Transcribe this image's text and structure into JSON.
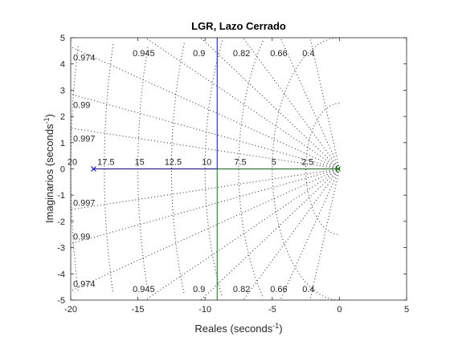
{
  "chart_data": {
    "type": "root-locus",
    "title": "LGR, Lazo Cerrado",
    "xlabel": "Reales (seconds",
    "ylabel": "Imaginarios (seconds",
    "unit_exponent": "-1",
    "unit_close": ")",
    "xlim": [
      -20,
      5
    ],
    "ylim": [
      -5,
      5
    ],
    "xticks": [
      -20,
      -15,
      -10,
      -5,
      0,
      5
    ],
    "yticks": [
      -5,
      -4,
      -3,
      -2,
      -1,
      0,
      1,
      2,
      3,
      4,
      5
    ],
    "damping_ratios": [
      "0.4",
      "0.66",
      "0.82",
      "0.9",
      "0.945",
      "0.974",
      "0.99",
      "0.997"
    ],
    "natural_frequencies": [
      "2.5",
      "5",
      "7.5",
      "10",
      "12.5",
      "15",
      "17.5",
      "20"
    ],
    "series": [
      {
        "color": "#0000ff",
        "segments": [
          {
            "x": [
              -18.3,
              -9.1
            ],
            "y": [
              0,
              0
            ]
          },
          {
            "x": [
              -9.1,
              -9.1
            ],
            "y": [
              0,
              5
            ]
          }
        ]
      },
      {
        "color": "#008000",
        "segments": [
          {
            "x": [
              -0.1,
              -9.1
            ],
            "y": [
              0,
              0
            ]
          },
          {
            "x": [
              -9.1,
              -9.1
            ],
            "y": [
              0,
              -5
            ]
          }
        ]
      }
    ],
    "poles": [
      {
        "x": -18.3,
        "y": 0,
        "color": "#0000ff"
      },
      {
        "x": -0.1,
        "y": 0,
        "color": "#008000"
      }
    ],
    "grid": true
  }
}
